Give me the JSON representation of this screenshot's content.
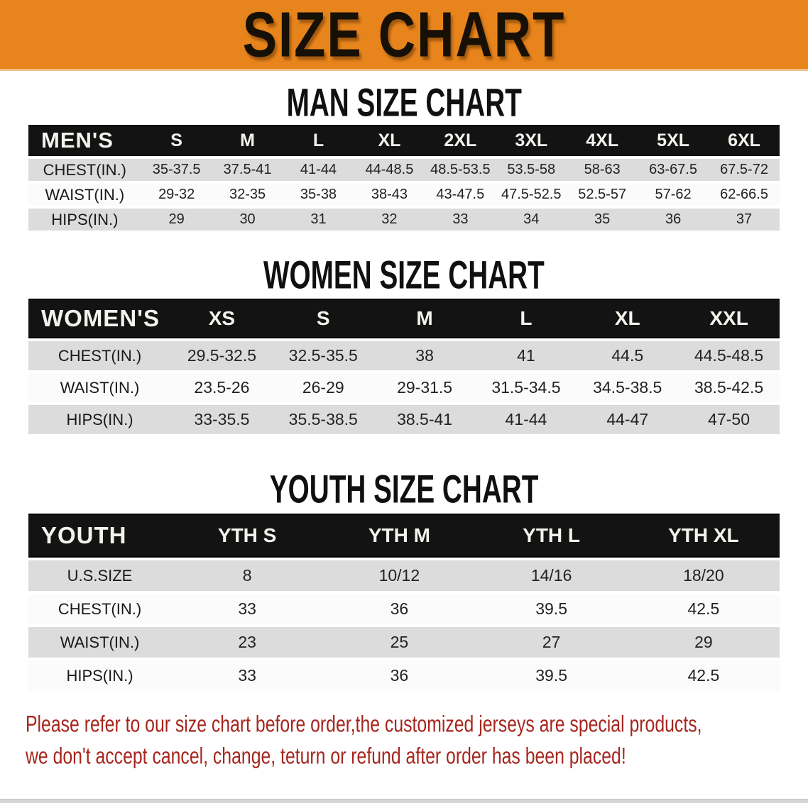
{
  "banner": {
    "title": "SIZE CHART",
    "bg_color": "#E8841C",
    "text_color": "#171006"
  },
  "colors": {
    "table_header_bar": "#131313",
    "row_gray": "#dcdcdc",
    "row_white": "#fbfbfb",
    "disclaimer_red": "#A6251D"
  },
  "sections": [
    {
      "heading": "MAN SIZE CHART",
      "table": {
        "header_label": "MEN'S",
        "columns": [
          "S",
          "M",
          "L",
          "XL",
          "2XL",
          "3XL",
          "4XL",
          "5XL",
          "6XL"
        ],
        "rows": [
          {
            "label": "CHEST(IN.)",
            "values": [
              "35-37.5",
              "37.5-41",
              "41-44",
              "44-48.5",
              "48.5-53.5",
              "53.5-58",
              "58-63",
              "63-67.5",
              "67.5-72"
            ]
          },
          {
            "label": "WAIST(IN.)",
            "values": [
              "29-32",
              "32-35",
              "35-38",
              "38-43",
              "43-47.5",
              "47.5-52.5",
              "52.5-57",
              "57-62",
              "62-66.5"
            ]
          },
          {
            "label": "HIPS(IN.)",
            "values": [
              "29",
              "30",
              "31",
              "32",
              "33",
              "34",
              "35",
              "36",
              "37"
            ]
          }
        ]
      }
    },
    {
      "heading": "WOMEN SIZE CHART",
      "table": {
        "header_label": "WOMEN'S",
        "columns": [
          "XS",
          "S",
          "M",
          "L",
          "XL",
          "XXL"
        ],
        "rows": [
          {
            "label": "CHEST(IN.)",
            "values": [
              "29.5-32.5",
              "32.5-35.5",
              "38",
              "41",
              "44.5",
              "44.5-48.5"
            ]
          },
          {
            "label": "WAIST(IN.)",
            "values": [
              "23.5-26",
              "26-29",
              "29-31.5",
              "31.5-34.5",
              "34.5-38.5",
              "38.5-42.5"
            ]
          },
          {
            "label": "HIPS(IN.)",
            "values": [
              "33-35.5",
              "35.5-38.5",
              "38.5-41",
              "41-44",
              "44-47",
              "47-50"
            ]
          }
        ]
      }
    },
    {
      "heading": "YOUTH SIZE CHART",
      "table": {
        "header_label": "YOUTH",
        "columns": [
          "YTH S",
          "YTH M",
          "YTH L",
          "YTH XL"
        ],
        "rows": [
          {
            "label": "U.S.SIZE",
            "values": [
              "8",
              "10/12",
              "14/16",
              "18/20"
            ]
          },
          {
            "label": "CHEST(IN.)",
            "values": [
              "33",
              "36",
              "39.5",
              "42.5"
            ]
          },
          {
            "label": "WAIST(IN.)",
            "values": [
              "23",
              "25",
              "27",
              "29"
            ]
          },
          {
            "label": "HIPS(IN.)",
            "values": [
              "33",
              "36",
              "39.5",
              "42.5"
            ]
          }
        ]
      }
    }
  ],
  "disclaimer": {
    "line1": "Please refer to our size chart before order,the customized jerseys are special products,",
    "line2": "we don't accept cancel, change, teturn or refund after order has been placed!"
  }
}
